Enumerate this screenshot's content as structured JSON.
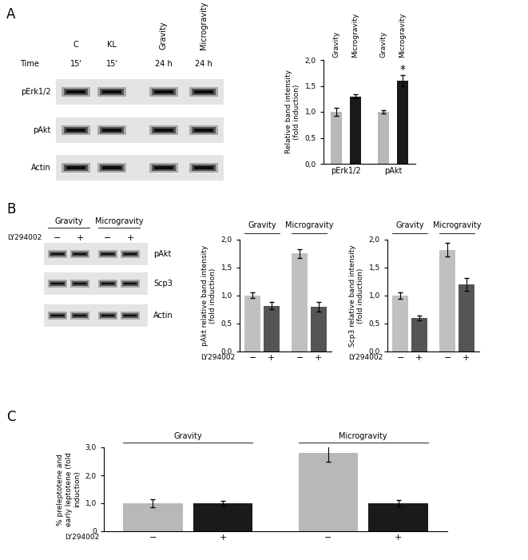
{
  "panel_labels": [
    "A",
    "B",
    "C"
  ],
  "blots": [
    {
      "lanes": [
        "C",
        "KL",
        "Gravity",
        "Microgravity"
      ],
      "time_label": "Time",
      "times": [
        "15'",
        "15'",
        "24 h",
        "24 h"
      ],
      "rows": [
        "pErk1/2",
        "pAkt",
        "Actin"
      ]
    },
    {
      "treatment": "LY294002",
      "groups": [
        "Gravity",
        "Microgravity"
      ],
      "lanes": [
        "−",
        "+",
        "−",
        "+"
      ],
      "rows": [
        "pAkt",
        "Scp3",
        "Actin"
      ]
    }
  ],
  "chart_data": [
    {
      "type": "bar",
      "categories": [
        "Gravity",
        "Microgravity",
        "Gravity",
        "Microgravity"
      ],
      "groups": [
        "pErk1/2",
        "pAkt"
      ],
      "values": [
        1.0,
        1.3,
        1.0,
        1.6
      ],
      "errors": [
        0.07,
        0.04,
        0.03,
        0.1
      ],
      "colors": [
        "#b8b8b8",
        "#1a1a1a",
        "#b8b8b8",
        "#1a1a1a"
      ],
      "marks": [
        null,
        null,
        null,
        "*"
      ],
      "y_label": "Relative band intensity (fold induction)",
      "ylim": [
        0,
        2.0
      ],
      "yticks": [
        {
          "value": 0,
          "label": "0,0"
        },
        {
          "value": 0.5,
          "label": "0,5"
        },
        {
          "value": 1.0,
          "label": "1,0"
        },
        {
          "value": 1.5,
          "label": "1,5"
        },
        {
          "value": 2.0,
          "label": "2,0"
        }
      ]
    },
    {
      "type": "bar",
      "categories": [
        "−",
        "+",
        "−",
        "+"
      ],
      "groups": [
        "Gravity",
        "Microgravity"
      ],
      "x_label": "LY294002",
      "values": [
        1.0,
        0.82,
        1.75,
        0.8
      ],
      "errors": [
        0.05,
        0.07,
        0.08,
        0.08
      ],
      "colors": [
        "#c0c0c0",
        "#555555",
        "#c0c0c0",
        "#555555"
      ],
      "y_label": "pAkt relative band intensity (fold induction)",
      "ylim": [
        0,
        2.0
      ],
      "yticks": [
        {
          "value": 0,
          "label": "0,0"
        },
        {
          "value": 0.5,
          "label": "0,5"
        },
        {
          "value": 1.0,
          "label": "1,0"
        },
        {
          "value": 1.5,
          "label": "1,5"
        },
        {
          "value": 2.0,
          "label": "2,0"
        }
      ]
    },
    {
      "type": "bar",
      "categories": [
        "−",
        "+",
        "−",
        "+"
      ],
      "groups": [
        "Gravity",
        "Microgravity"
      ],
      "x_label": "LY294002",
      "values": [
        1.0,
        0.6,
        1.82,
        1.2
      ],
      "errors": [
        0.06,
        0.04,
        0.12,
        0.12
      ],
      "colors": [
        "#c0c0c0",
        "#555555",
        "#c0c0c0",
        "#555555"
      ],
      "y_label": "Scp3 relative band intensity (fold induction)",
      "ylim": [
        0,
        2.0
      ],
      "yticks": [
        {
          "value": 0,
          "label": "0,0"
        },
        {
          "value": 0.5,
          "label": "0,5"
        },
        {
          "value": 1.0,
          "label": "1,0"
        },
        {
          "value": 1.5,
          "label": "1,5"
        },
        {
          "value": 2.0,
          "label": "2,0"
        }
      ]
    },
    {
      "type": "bar",
      "categories": [
        "−",
        "+",
        "−",
        "+"
      ],
      "groups": [
        "Gravity",
        "Microgravity"
      ],
      "x_label": "LY294002",
      "values": [
        1.0,
        1.0,
        2.8,
        1.0
      ],
      "errors": [
        0.15,
        0.08,
        0.3,
        0.12
      ],
      "colors": [
        "#b8b8b8",
        "#1a1a1a",
        "#b8b8b8",
        "#1a1a1a"
      ],
      "y_label": "% preleptotene and early leptotene (fold induction)",
      "ylim": [
        0,
        3.0
      ],
      "yticks": [
        0,
        {
          "value": 1.0,
          "label": "1,0"
        },
        {
          "value": 2.0,
          "label": "2,0"
        },
        {
          "value": 3.0,
          "label": "3,0"
        }
      ]
    }
  ]
}
